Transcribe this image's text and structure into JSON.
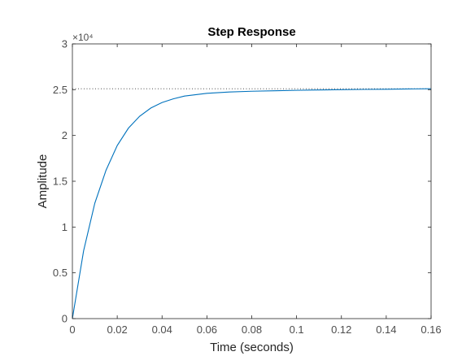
{
  "chart_data": {
    "type": "line",
    "title": "Step Response",
    "xlabel": "Time (seconds)",
    "ylabel": "Amplitude",
    "xlim": [
      0,
      0.16
    ],
    "ylim": [
      0,
      30000
    ],
    "x_ticks": [
      0,
      0.02,
      0.04,
      0.06,
      0.08,
      0.1,
      0.12,
      0.14,
      0.16
    ],
    "x_tick_labels": [
      "0",
      "0.02",
      "0.04",
      "0.06",
      "0.08",
      "0.1",
      "0.12",
      "0.14",
      "0.16"
    ],
    "y_ticks": [
      0,
      5000,
      10000,
      15000,
      20000,
      25000,
      30000
    ],
    "y_tick_labels": [
      "0",
      "0.5",
      "1",
      "1.5",
      "2",
      "2.5",
      "3"
    ],
    "y_exponent_label": "×10⁴",
    "grid": false,
    "steady_state": 25100,
    "colors": {
      "line": "#0072bd",
      "steady_state_line": "#333333",
      "axes": "#262626"
    },
    "series": [
      {
        "x": [
          0,
          0.005,
          0.01,
          0.015,
          0.02,
          0.025,
          0.03,
          0.035,
          0.04,
          0.045,
          0.05,
          0.06,
          0.07,
          0.08,
          0.09,
          0.1,
          0.11,
          0.12,
          0.13,
          0.14,
          0.15,
          0.16
        ],
        "values": [
          0,
          7400,
          12600,
          16200,
          18900,
          20800,
          22100,
          23000,
          23600,
          24000,
          24300,
          24600,
          24750,
          24830,
          24880,
          24930,
          24970,
          25000,
          25030,
          25050,
          25080,
          25100
        ]
      }
    ]
  }
}
